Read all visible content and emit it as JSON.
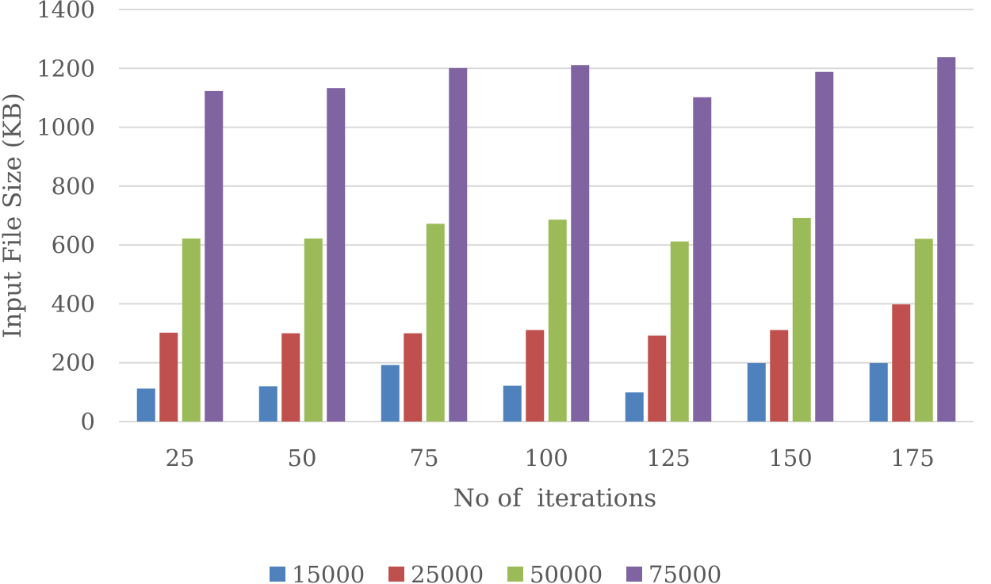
{
  "chart_data": {
    "type": "bar",
    "title": "",
    "xlabel": "No of  iterations",
    "ylabel": "Input File Size (KB)",
    "categories": [
      "25",
      "50",
      "75",
      "100",
      "125",
      "150",
      "175"
    ],
    "ylim": [
      0,
      1400
    ],
    "yticks": [
      0,
      200,
      400,
      600,
      800,
      1000,
      1200,
      1400
    ],
    "grid": "horizontal",
    "legend": "bottom",
    "series": [
      {
        "name": "15000",
        "color": "#4F81BD",
        "values": [
          112,
          120,
          192,
          122,
          99,
          199,
          199
        ]
      },
      {
        "name": "25000",
        "color": "#C0504D",
        "values": [
          302,
          300,
          300,
          311,
          292,
          311,
          398
        ]
      },
      {
        "name": "50000",
        "color": "#9BBB59",
        "values": [
          622,
          622,
          672,
          686,
          612,
          692,
          621
        ]
      },
      {
        "name": "75000",
        "color": "#8064A2",
        "values": [
          1123,
          1133,
          1201,
          1211,
          1102,
          1188,
          1238
        ]
      }
    ]
  }
}
